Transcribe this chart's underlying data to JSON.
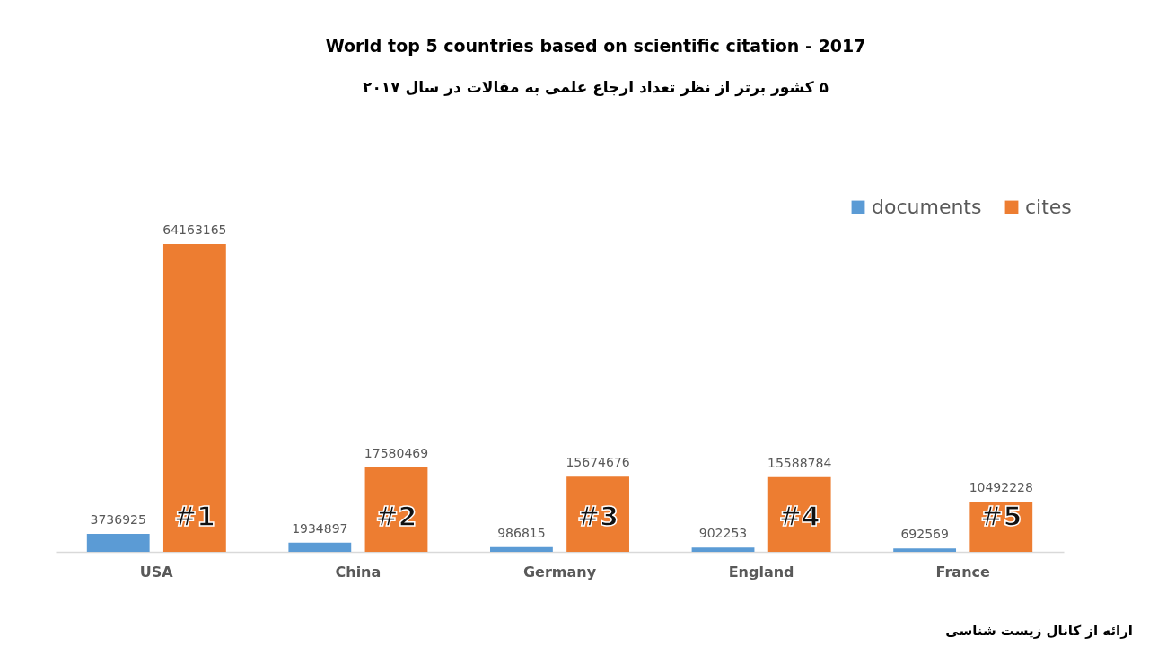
{
  "chart_data": {
    "type": "bar",
    "title": "World top 5 countries based on scientific citation - 2017",
    "subtitle": "۵ کشور برتر از نظر تعداد ارجاع علمی به مقالات در سال ۲۰۱۷",
    "categories": [
      "USA",
      "China",
      "Germany",
      "England",
      "France"
    ],
    "series": [
      {
        "name": "documents",
        "color": "#5b9bd5",
        "values": [
          3736925,
          1934897,
          986815,
          902253,
          692569
        ]
      },
      {
        "name": "cites",
        "color": "#ed7d31",
        "values": [
          64163165,
          17580469,
          15674676,
          15588784,
          10492228
        ]
      }
    ],
    "data_labels": true,
    "legend": "top right",
    "grid": false,
    "tick_labels": "x",
    "annotations": [
      "#1",
      "#2",
      "#3",
      "#4",
      "#5",
      "ارائه از کانال زیست شناسی"
    ]
  }
}
